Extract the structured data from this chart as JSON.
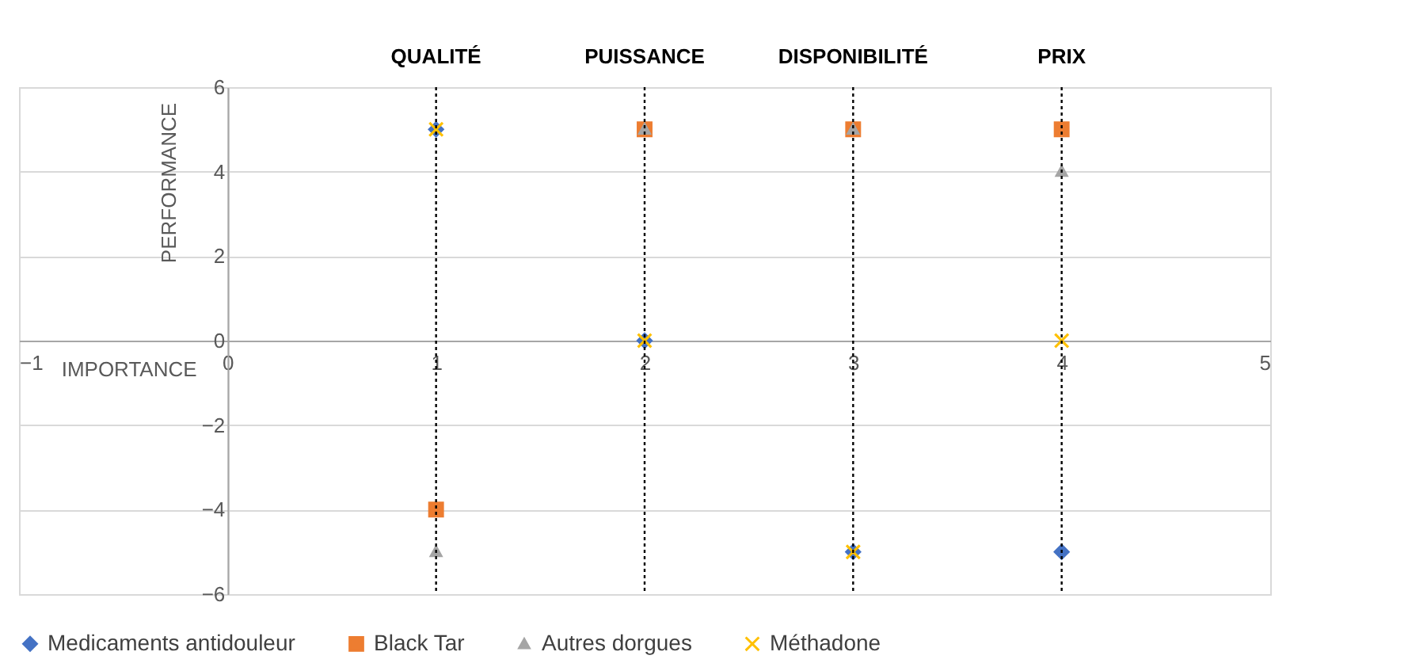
{
  "chart_data": {
    "type": "scatter",
    "xlabel": "IMPORTANCE",
    "ylabel": "PERFORMANCE",
    "x": [
      1,
      2,
      3,
      4
    ],
    "series": [
      {
        "name": "Medicaments antidouleur",
        "color": "#4472c4",
        "marker": "diamond",
        "values": [
          5,
          0,
          -5,
          -5
        ]
      },
      {
        "name": "Black Tar",
        "color": "#ed7d31",
        "marker": "square",
        "values": [
          -4,
          5,
          5,
          5
        ]
      },
      {
        "name": "Autres dorgues",
        "color": "#a5a5a5",
        "marker": "triangle",
        "values": [
          -5,
          5,
          5,
          4
        ]
      },
      {
        "name": "Méthadone",
        "color": "#ffc000",
        "marker": "cross",
        "values": [
          5,
          0,
          -5,
          0
        ]
      }
    ],
    "xlim": [
      -1,
      5
    ],
    "xticks": [
      -1,
      0,
      1,
      2,
      3,
      4,
      5
    ],
    "ylim": [
      -6,
      6
    ],
    "yticks": [
      -6,
      -4,
      -2,
      0,
      2,
      4,
      6
    ],
    "ref_lines": [
      {
        "axis": "x",
        "value": 1,
        "label": "QUALITÉ",
        "color": "#000000",
        "line_style": "dotted"
      },
      {
        "axis": "x",
        "value": 2,
        "label": "PUISSANCE",
        "color": "#000000",
        "line_style": "dotted"
      },
      {
        "axis": "x",
        "value": 3,
        "label": "DISPONIBILITÉ",
        "color": "#000000",
        "line_style": "dotted"
      },
      {
        "axis": "x",
        "value": 4,
        "label": "PRIX",
        "color": "#000000",
        "line_style": "dotted"
      }
    ],
    "grid": true,
    "legend": "bottom"
  }
}
